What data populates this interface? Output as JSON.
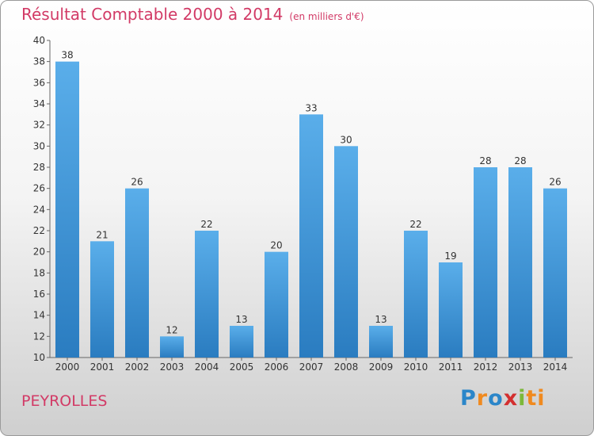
{
  "title": "Résultat Comptable 2000 à 2014",
  "subtitle": "(en milliers d'€)",
  "place": "PEYROLLES",
  "logo": "Proxiti",
  "colors": {
    "accent": "#d23a66",
    "bar_light": "#5aaeea",
    "bar_dark": "#2a7cc0"
  },
  "chart_data": {
    "type": "bar",
    "title": "Résultat Comptable 2000 à 2014",
    "subtitle": "(en milliers d'€)",
    "categories": [
      "2000",
      "2001",
      "2002",
      "2003",
      "2004",
      "2005",
      "2006",
      "2007",
      "2008",
      "2009",
      "2010",
      "2011",
      "2012",
      "2013",
      "2014"
    ],
    "values": [
      38,
      21,
      26,
      12,
      22,
      13,
      20,
      33,
      30,
      13,
      22,
      19,
      28,
      28,
      26
    ],
    "ylim": [
      10,
      40
    ],
    "yticks": [
      10,
      12,
      14,
      16,
      18,
      20,
      22,
      24,
      26,
      28,
      30,
      32,
      34,
      36,
      38,
      40
    ],
    "grid": false,
    "legend": "none"
  }
}
